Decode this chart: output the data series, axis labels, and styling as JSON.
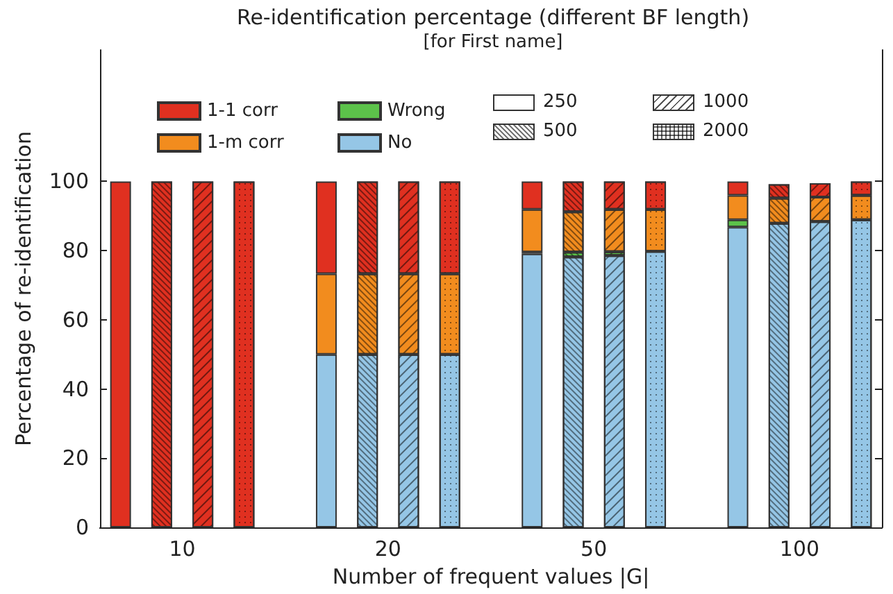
{
  "chart_data": {
    "type": "bar",
    "title": "Re-identification percentage (different BF length)",
    "subtitle": "[for First name]",
    "xlabel": "Number of frequent values |G|",
    "ylabel": "Percentage of re-identification",
    "categories": [
      null,
      "10",
      null,
      null,
      null,
      null,
      "20",
      null,
      null,
      null,
      null,
      "50",
      null,
      null,
      null,
      null,
      "100",
      null,
      null
    ],
    "stacked": true,
    "legend": "top",
    "ylim": [
      0,
      138
    ],
    "yticks": [
      0,
      20,
      40,
      60,
      80,
      100
    ],
    "annotations": [
      "250",
      "500",
      "1000",
      "2000"
    ],
    "series": [
      {
        "name": "No",
        "color": "#95c6e6",
        "values": [
          0,
          0,
          0,
          0,
          null,
          50,
          50,
          50,
          50,
          null,
          79.1,
          78.2,
          78.6,
          79.8,
          null,
          86.8,
          87.9,
          88.4,
          88.9
        ]
      },
      {
        "name": "Wrong",
        "color": "#5cc24a",
        "values": [
          0,
          0,
          0,
          0,
          null,
          0,
          0,
          0,
          0,
          null,
          0.5,
          1.4,
          1.1,
          0,
          null,
          2.1,
          null,
          null,
          0
        ]
      },
      {
        "name": "1-m corr",
        "color": "#f28c1e",
        "values": [
          0,
          0,
          0,
          0,
          null,
          23.3,
          23.3,
          23.3,
          23.3,
          null,
          12.3,
          11.6,
          12.2,
          12.1,
          null,
          7.1,
          7.3,
          7.1,
          7.1
        ]
      },
      {
        "name": "1-1 corr",
        "color": "#e03020",
        "values": [
          100,
          100,
          100,
          100,
          null,
          26.7,
          26.7,
          26.7,
          26.7,
          null,
          8.1,
          8.8,
          8.1,
          8.1,
          null,
          4,
          4,
          4,
          4
        ]
      }
    ]
  }
}
